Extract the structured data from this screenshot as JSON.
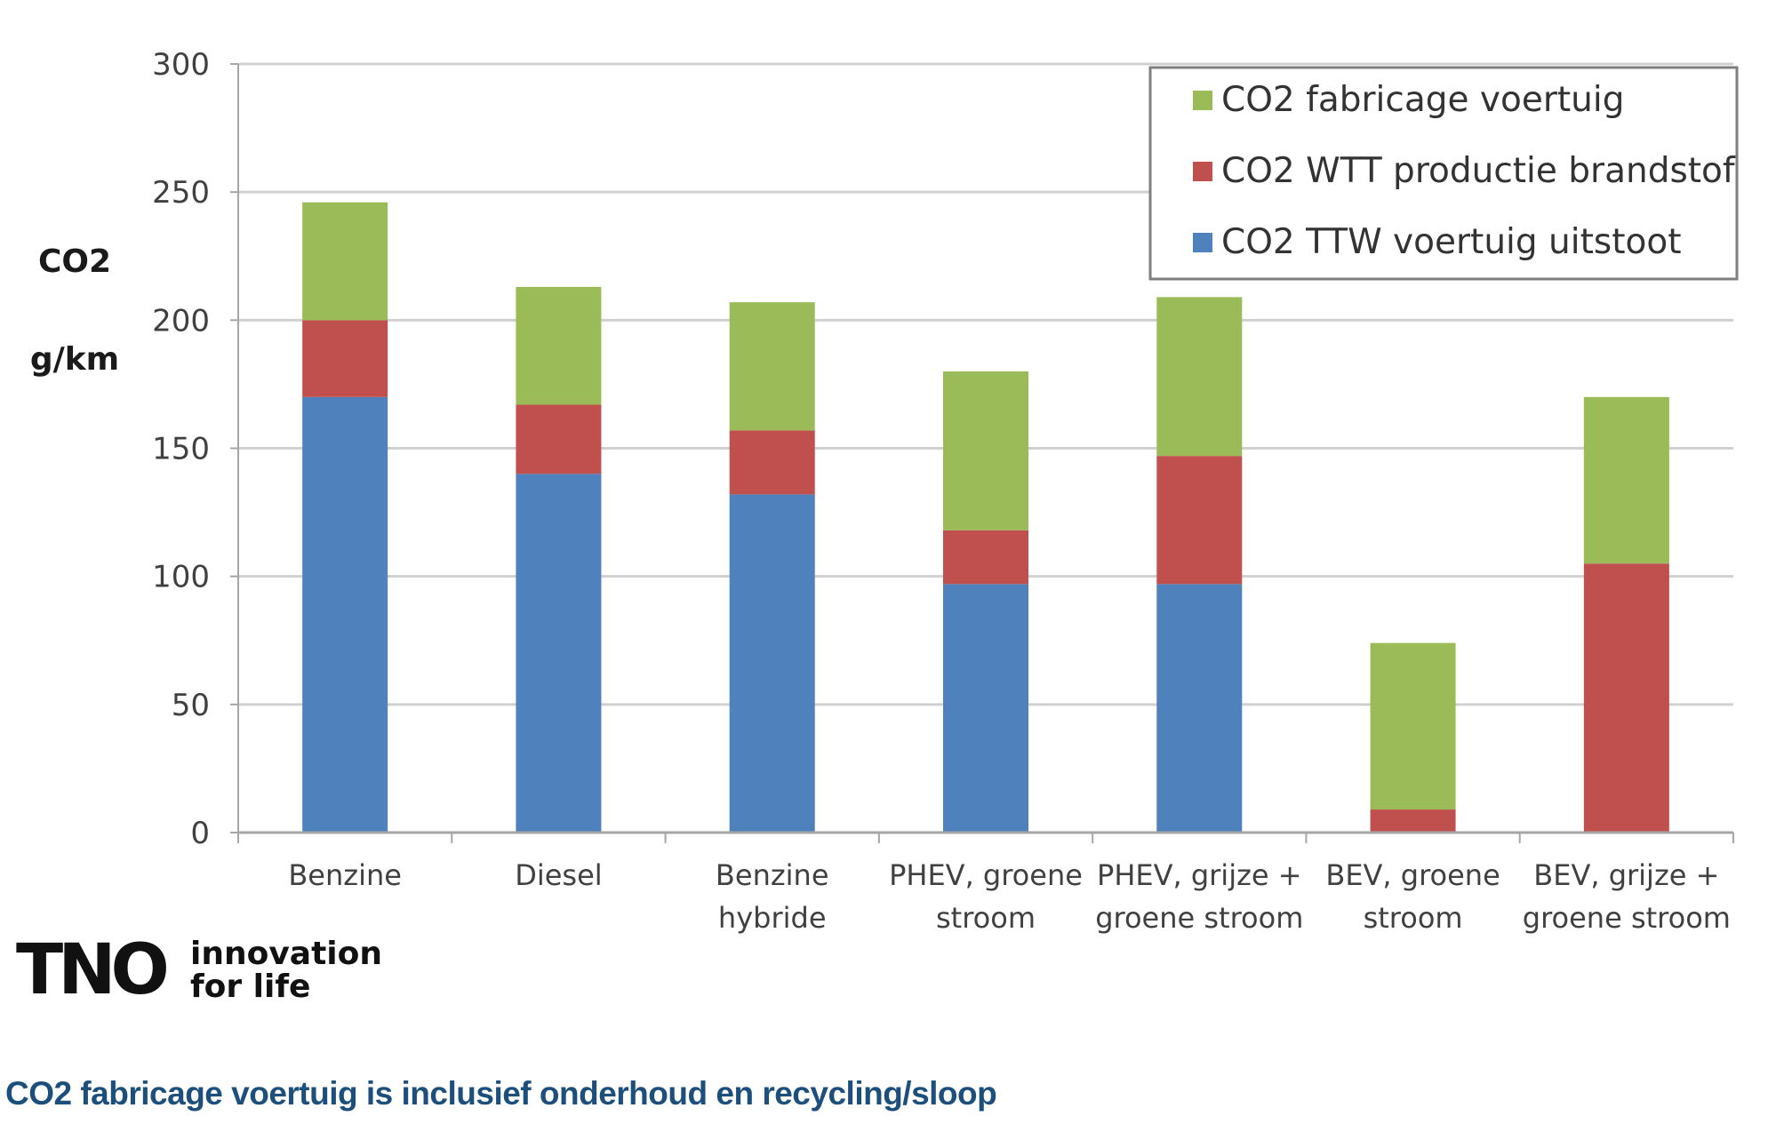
{
  "chart_data": {
    "type": "bar",
    "stacked": true,
    "categories": [
      [
        "Benzine"
      ],
      [
        "Diesel"
      ],
      [
        "Benzine",
        "hybride"
      ],
      [
        "PHEV, groene",
        "stroom"
      ],
      [
        "PHEV, grijze +",
        "groene stroom"
      ],
      [
        "BEV, groene",
        "stroom"
      ],
      [
        "BEV, grijze +",
        "groene stroom"
      ]
    ],
    "series": [
      {
        "name": "CO2 TTW voertuig uitstoot",
        "color": "#4f81bd",
        "values": [
          170,
          140,
          132,
          97,
          97,
          0,
          0
        ]
      },
      {
        "name": "CO2 WTT productie brandstof",
        "color": "#c0504d",
        "values": [
          30,
          27,
          25,
          21,
          50,
          9,
          105
        ]
      },
      {
        "name": "CO2  fabricage voertuig",
        "color": "#9bbb59",
        "values": [
          46,
          46,
          50,
          62,
          62,
          65,
          65
        ]
      }
    ],
    "legend_order": [
      2,
      1,
      0
    ],
    "legend_position": "top-right",
    "ylabel": [
      "CO2",
      "g/km"
    ],
    "ylim": [
      0,
      300
    ],
    "yticks": [
      0,
      50,
      100,
      150,
      200,
      250,
      300
    ],
    "grid": true
  },
  "logo": {
    "mark": "TNO",
    "tagline": [
      "innovation",
      "for life"
    ]
  },
  "footnote": "CO2 fabricage voertuig is inclusief onderhoud en recycling/sloop"
}
